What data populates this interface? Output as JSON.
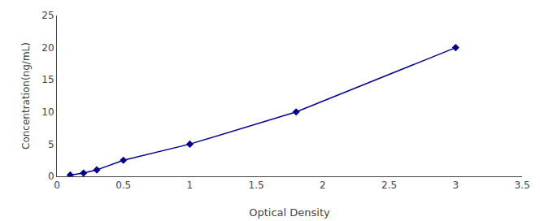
{
  "chart_data": {
    "type": "line",
    "x": [
      0.1,
      0.2,
      0.3,
      0.5,
      1.0,
      1.8,
      3.0
    ],
    "values": [
      0.2,
      0.5,
      1.0,
      2.5,
      5.0,
      10.0,
      20.0
    ],
    "color": "#00008B",
    "marker": "diamond",
    "xlabel": "Optical Density",
    "ylabel": "Concentration(ng/mL)",
    "xlim": [
      0,
      3.5
    ],
    "ylim": [
      0,
      25
    ],
    "xticks": [
      0,
      0.5,
      1,
      1.5,
      2,
      2.5,
      3,
      3.5
    ],
    "yticks": [
      0,
      5,
      10,
      15,
      20,
      25
    ],
    "grid": false
  }
}
